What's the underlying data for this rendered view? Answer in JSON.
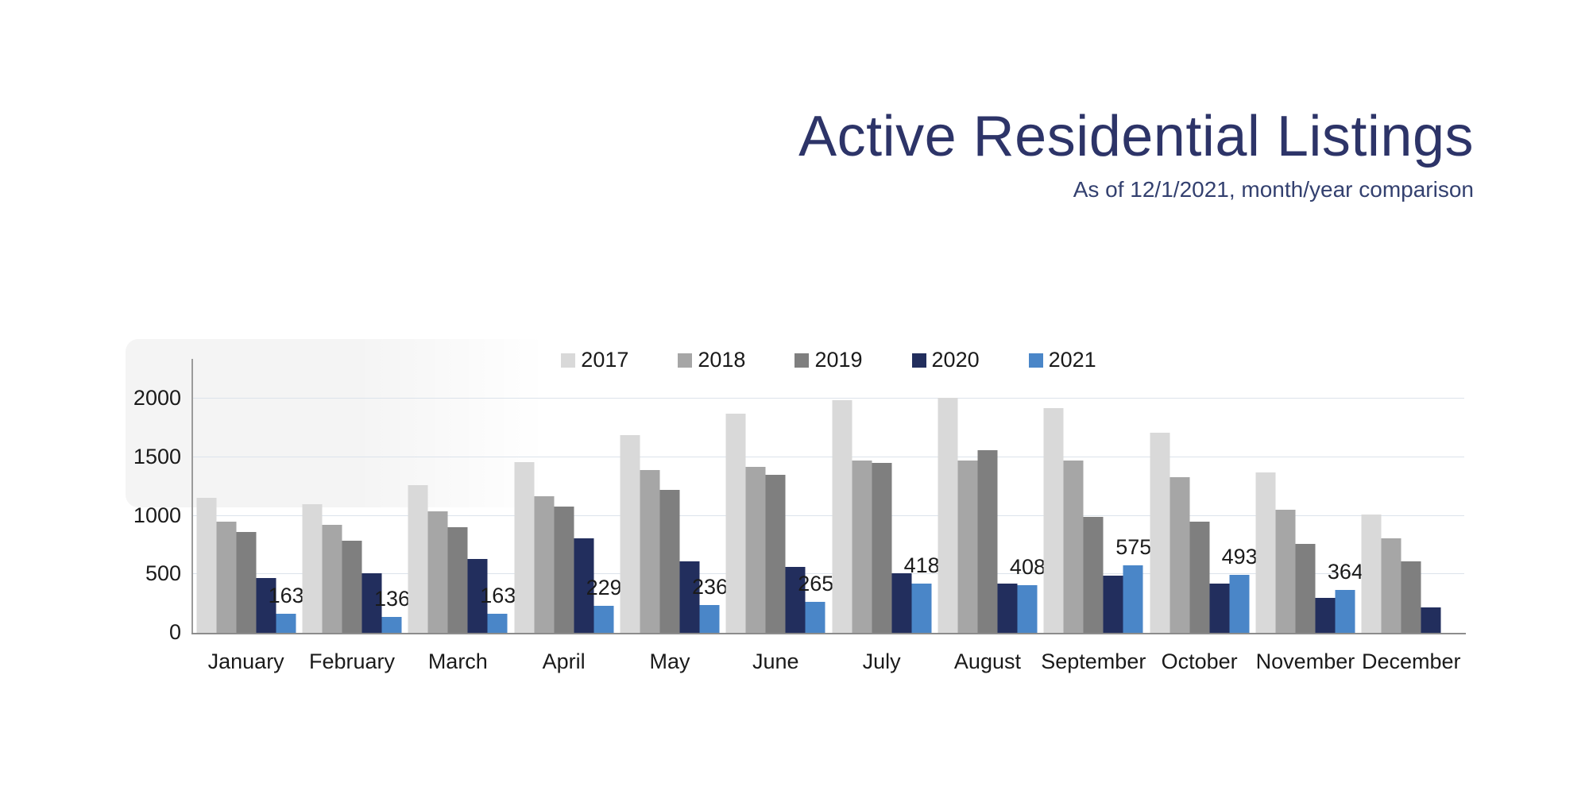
{
  "header": {
    "title": "Active Residential Listings",
    "subtitle": "As of 12/1/2021, month/year comparison"
  },
  "colors": {
    "title_text": "#2d3468",
    "subtitle_text": "#33406f",
    "gridline": "#dce3eb",
    "axis_line": "#8c8c8c",
    "tick_text": "#1a1a1a"
  },
  "chart_data": {
    "type": "bar",
    "title": "Active Residential Listings",
    "subtitle": "As of 12/1/2021, month/year comparison",
    "categories": [
      "January",
      "February",
      "March",
      "April",
      "May",
      "June",
      "July",
      "August",
      "September",
      "October",
      "November",
      "December"
    ],
    "series": [
      {
        "name": "2017",
        "color": "#d9d9d9",
        "values": [
          1150,
          1100,
          1260,
          1460,
          1690,
          1870,
          1990,
          2010,
          1920,
          1710,
          1370,
          1010
        ]
      },
      {
        "name": "2018",
        "color": "#a6a6a6",
        "values": [
          950,
          920,
          1040,
          1170,
          1390,
          1420,
          1470,
          1470,
          1470,
          1330,
          1050,
          810
        ]
      },
      {
        "name": "2019",
        "color": "#7f7f7f",
        "values": [
          860,
          790,
          900,
          1080,
          1220,
          1350,
          1450,
          1560,
          990,
          950,
          760,
          610
        ]
      },
      {
        "name": "2020",
        "color": "#222e5d",
        "values": [
          470,
          510,
          630,
          810,
          610,
          560,
          510,
          420,
          490,
          420,
          300,
          220
        ]
      },
      {
        "name": "2021",
        "color": "#4a86c8",
        "values": [
          163,
          136,
          163,
          229,
          236,
          265,
          418,
          408,
          575,
          493,
          364,
          null
        ],
        "data_labels": true
      }
    ],
    "ylim": [
      0,
      2340
    ],
    "yticks": [
      0,
      500,
      1000,
      1500,
      2000
    ],
    "legend_position": "top",
    "grid": true
  }
}
